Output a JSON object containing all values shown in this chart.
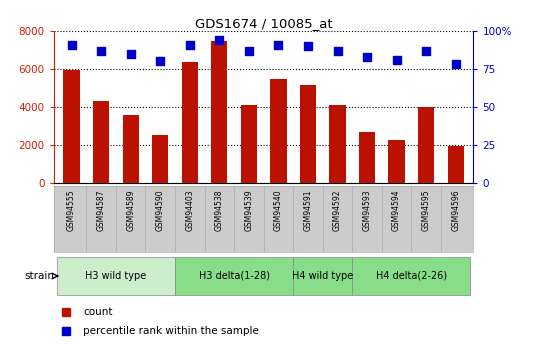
{
  "title": "GDS1674 / 10085_at",
  "samples": [
    "GSM94555",
    "GSM94587",
    "GSM94589",
    "GSM94590",
    "GSM94403",
    "GSM94538",
    "GSM94539",
    "GSM94540",
    "GSM94591",
    "GSM94592",
    "GSM94593",
    "GSM94594",
    "GSM94595",
    "GSM94596"
  ],
  "counts": [
    5950,
    4300,
    3580,
    2520,
    6380,
    7500,
    4080,
    5450,
    5150,
    4080,
    2700,
    2280,
    3980,
    1920
  ],
  "percentiles": [
    91,
    87,
    85,
    80,
    91,
    94,
    87,
    91,
    90,
    87,
    83,
    81,
    87,
    78
  ],
  "bar_color": "#bb1100",
  "dot_color": "#0000cc",
  "groups": [
    {
      "label": "H3 wild type",
      "start": 0,
      "end": 4
    },
    {
      "label": "H3 delta(1-28)",
      "start": 4,
      "end": 8
    },
    {
      "label": "H4 wild type",
      "start": 8,
      "end": 10
    },
    {
      "label": "H4 delta(2-26)",
      "start": 10,
      "end": 14
    }
  ],
  "group_colors": [
    "#cceecc",
    "#88dd88",
    "#88dd88",
    "#88dd88"
  ],
  "sample_bg_color": "#cccccc",
  "ylim_left": [
    0,
    8000
  ],
  "ylim_right": [
    0,
    100
  ],
  "yticks_left": [
    0,
    2000,
    4000,
    6000,
    8000
  ],
  "yticks_right": [
    0,
    25,
    50,
    75,
    100
  ],
  "ylabel_left_color": "#cc2200",
  "ylabel_right_color": "#0000cc",
  "grid_color": "#000000",
  "strain_label": "strain",
  "legend_count_label": "count",
  "legend_pct_label": "percentile rank within the sample"
}
